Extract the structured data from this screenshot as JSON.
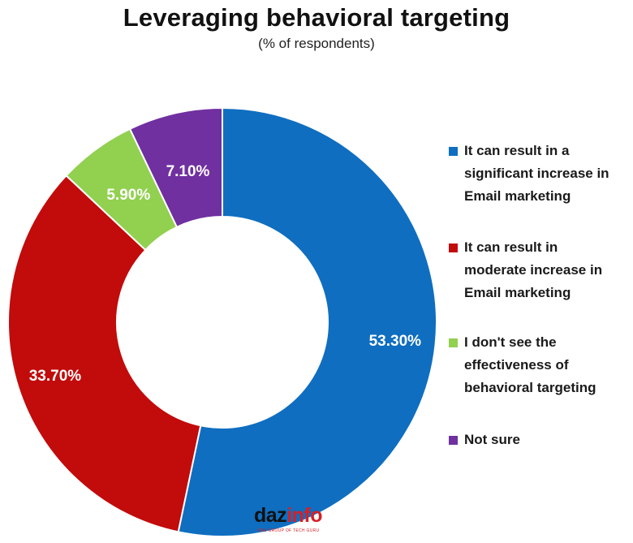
{
  "chart_data": {
    "type": "pie",
    "variant": "donut",
    "title": "Leveraging behavioral targeting",
    "subtitle": "(% of respondents)",
    "legend_position": "right",
    "slices": [
      {
        "label": "It can result in a significant increase in Email marketing",
        "value": 53.3,
        "display": "53.30%",
        "color": "#0f6ec0"
      },
      {
        "label": "It can result in moderate increase in Email marketing",
        "value": 33.7,
        "display": "33.70%",
        "color": "#c20b0b"
      },
      {
        "label": "I don't see the effectiveness of behavioral targeting",
        "value": 5.9,
        "display": "5.90%",
        "color": "#92d050"
      },
      {
        "label": "Not sure",
        "value": 7.1,
        "display": "7.10%",
        "color": "#7030a0"
      }
    ]
  },
  "legend": [
    {
      "lines": [
        "It can result in a",
        "significant increase in",
        "Email marketing"
      ]
    },
    {
      "lines": [
        "It can result in",
        "moderate increase in",
        "Email marketing"
      ]
    },
    {
      "lines": [
        "I don't see the",
        "effectiveness of",
        "behavioral targeting"
      ]
    },
    {
      "lines": [
        "Not sure"
      ]
    }
  ],
  "logo": {
    "text_main": "daz",
    "text_accent": "info",
    "tagline": "ONE GROUP OF TECH GURU"
  }
}
